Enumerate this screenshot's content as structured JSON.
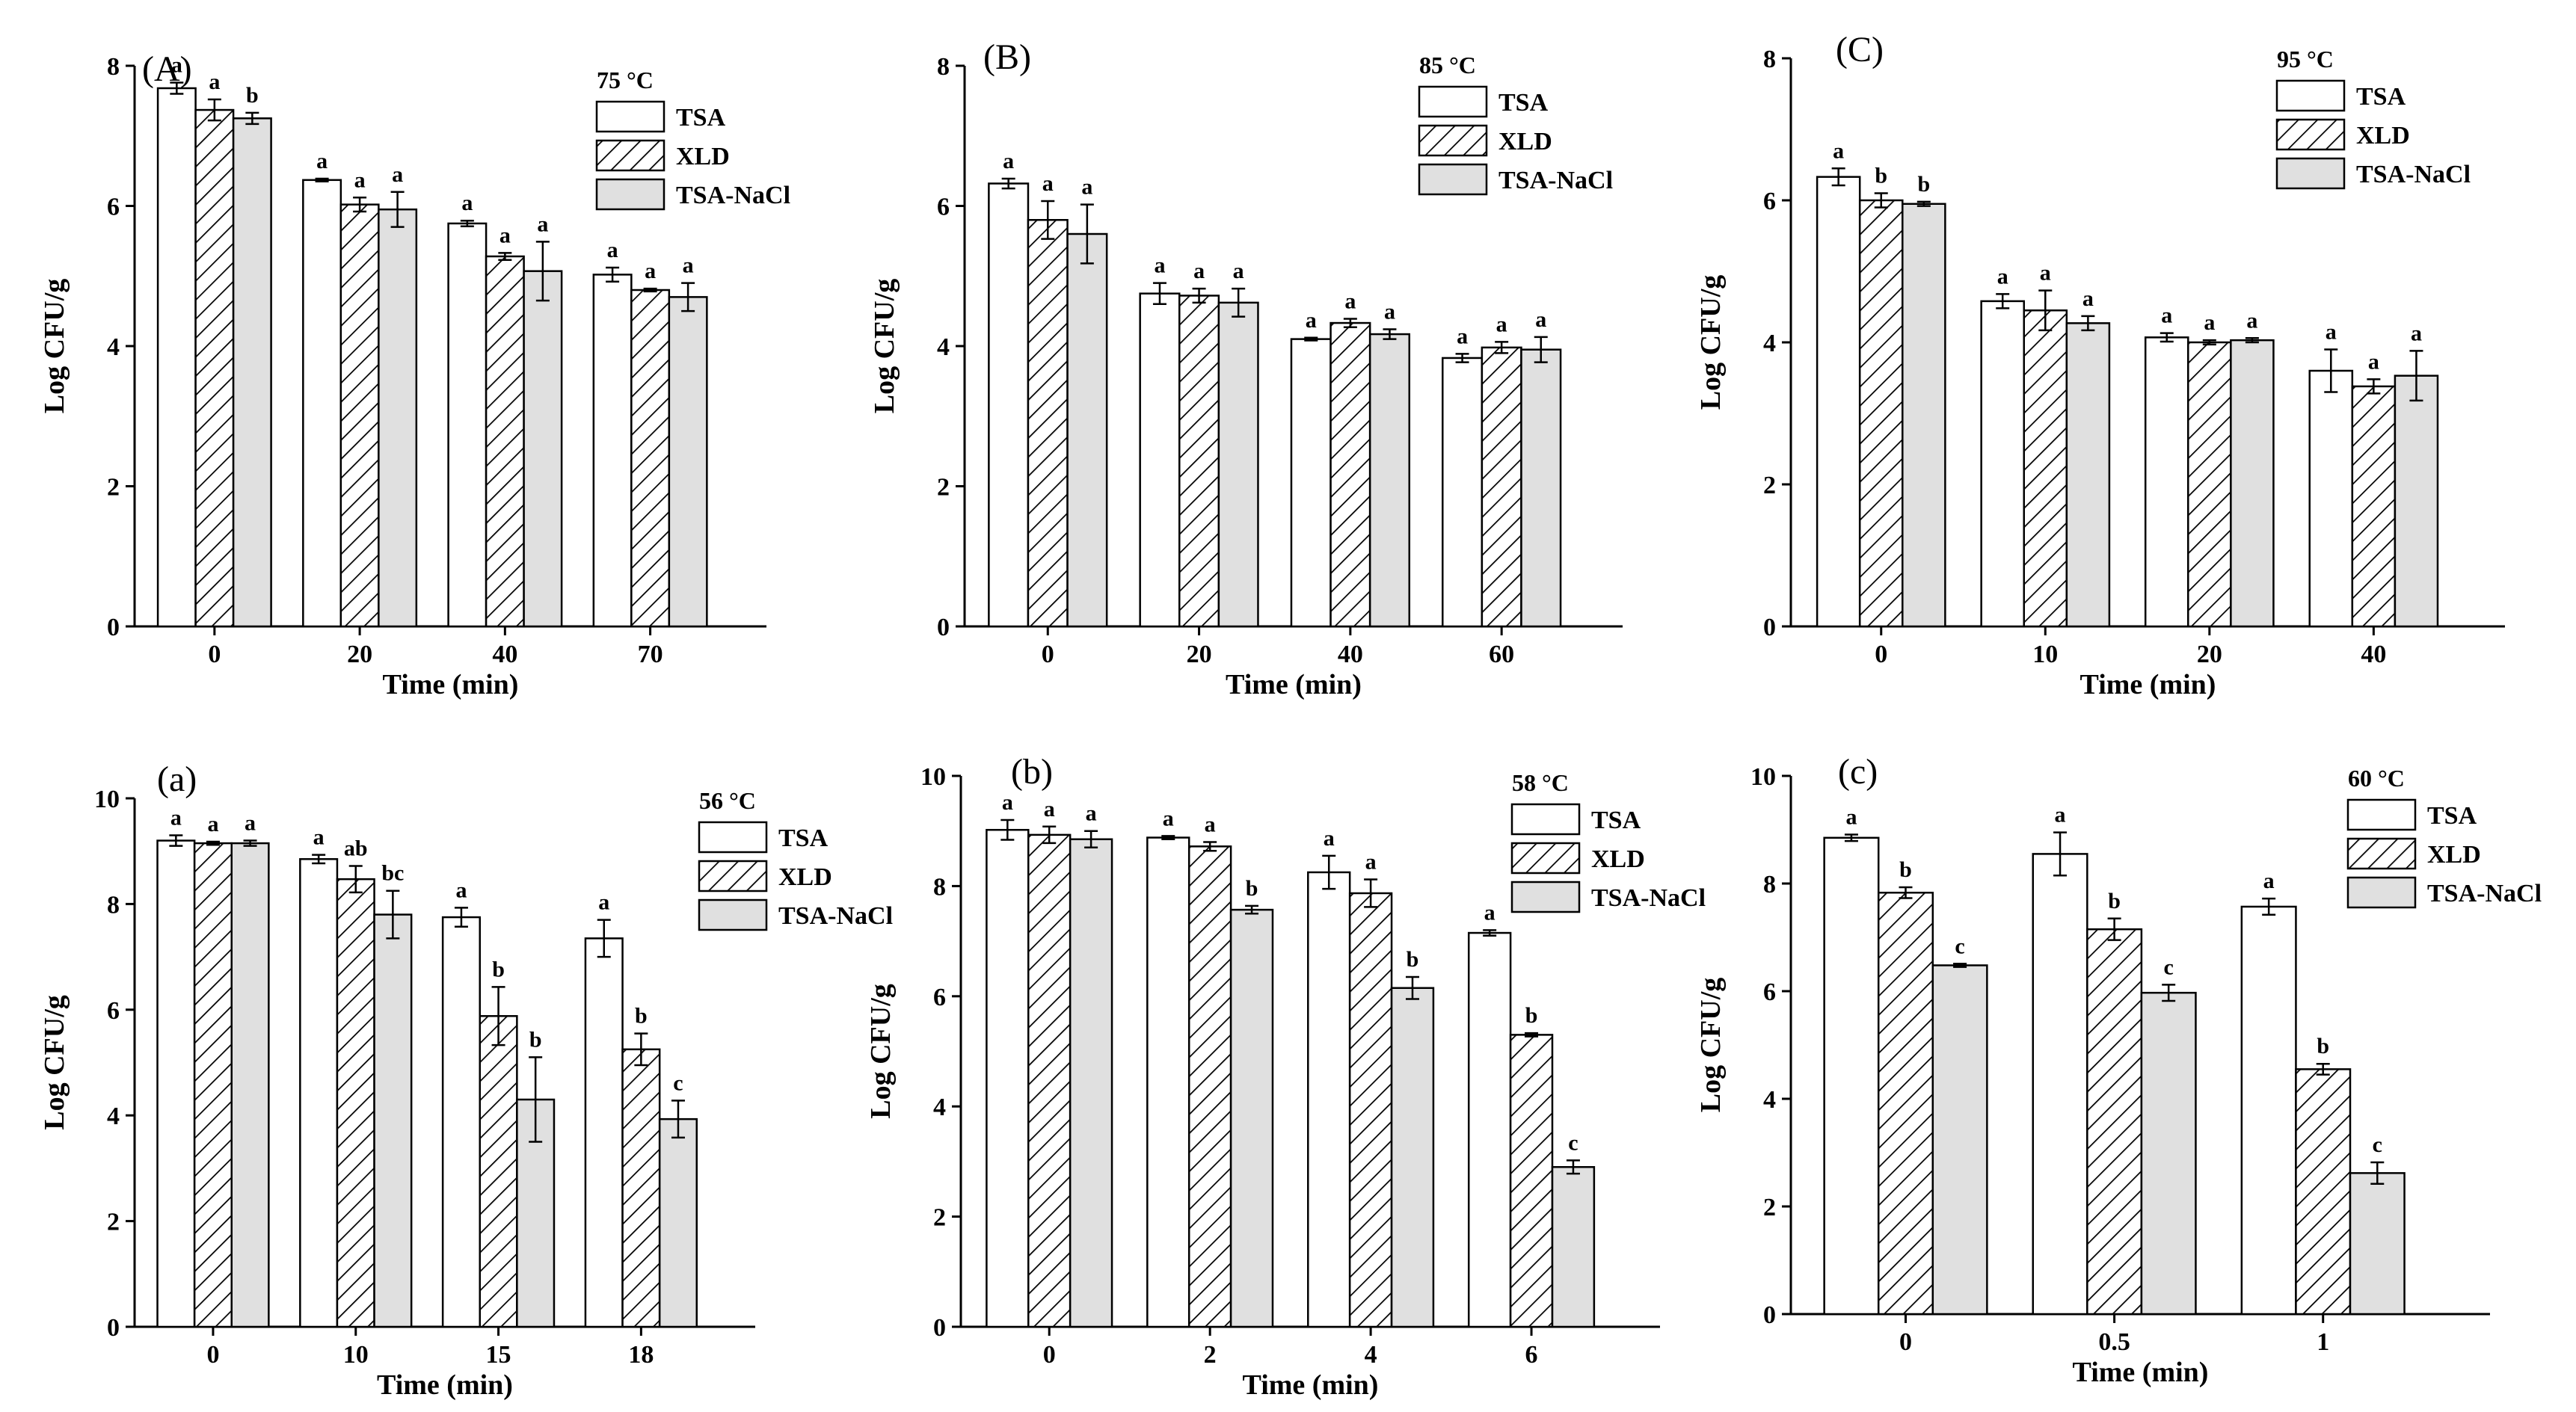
{
  "figure": {
    "colors": {
      "TSA": "#ffffff",
      "XLD": "#ffffff",
      "TSA-NaCl": "#e0e0e0",
      "stroke": "#000000",
      "hatch": "#000000"
    }
  },
  "chart_data": [
    {
      "panel": "(A)",
      "type": "bar",
      "legend_title": "75 °C",
      "xlabel": "Time (min)",
      "ylabel": "Log CFU/g",
      "ylim": [
        0,
        8
      ],
      "yticks": [
        "0",
        "2",
        "4",
        "6",
        "8"
      ],
      "categories": [
        "0",
        "20",
        "40",
        "70"
      ],
      "series": [
        {
          "name": "TSA",
          "values": [
            7.68,
            6.37,
            5.75,
            5.02
          ],
          "errors": [
            0.08,
            0.02,
            0.04,
            0.1
          ],
          "letters": [
            "a",
            "a",
            "a",
            "a"
          ]
        },
        {
          "name": "XLD",
          "values": [
            7.37,
            6.02,
            5.28,
            4.8
          ],
          "errors": [
            0.15,
            0.1,
            0.05,
            0.02
          ],
          "letters": [
            "a",
            "a",
            "a",
            "a"
          ]
        },
        {
          "name": "TSA-NaCl",
          "values": [
            7.25,
            5.95,
            5.07,
            4.7
          ],
          "errors": [
            0.08,
            0.25,
            0.42,
            0.2
          ],
          "letters": [
            "b",
            "a",
            "a",
            "a"
          ]
        }
      ]
    },
    {
      "panel": "(B)",
      "type": "bar",
      "legend_title": "85 °C",
      "xlabel": "Time (min)",
      "ylabel": "Log CFU/g",
      "ylim": [
        0,
        8
      ],
      "yticks": [
        "0",
        "2",
        "4",
        "6",
        "8"
      ],
      "categories": [
        "0",
        "20",
        "40",
        "60"
      ],
      "series": [
        {
          "name": "TSA",
          "values": [
            6.32,
            4.75,
            4.1,
            3.83
          ],
          "errors": [
            0.07,
            0.15,
            0.02,
            0.06
          ],
          "letters": [
            "a",
            "a",
            "a",
            "a"
          ]
        },
        {
          "name": "XLD",
          "values": [
            5.8,
            4.72,
            4.33,
            3.98
          ],
          "errors": [
            0.27,
            0.1,
            0.06,
            0.08
          ],
          "letters": [
            "a",
            "a",
            "a",
            "a"
          ]
        },
        {
          "name": "TSA-NaCl",
          "values": [
            5.6,
            4.62,
            4.17,
            3.95
          ],
          "errors": [
            0.42,
            0.2,
            0.07,
            0.18
          ],
          "letters": [
            "a",
            "a",
            "a",
            "a"
          ]
        }
      ]
    },
    {
      "panel": "(C)",
      "type": "bar",
      "legend_title": "95 °C",
      "xlabel": "Time (min)",
      "ylabel": "Log CFU/g",
      "ylim": [
        0,
        8
      ],
      "yticks": [
        "0",
        "2",
        "4",
        "6",
        "8"
      ],
      "categories": [
        "0",
        "10",
        "20",
        "40"
      ],
      "series": [
        {
          "name": "TSA",
          "values": [
            6.33,
            4.58,
            4.07,
            3.6
          ],
          "errors": [
            0.12,
            0.1,
            0.06,
            0.3
          ],
          "letters": [
            "a",
            "a",
            "a",
            "a"
          ]
        },
        {
          "name": "XLD",
          "values": [
            6.0,
            4.45,
            4.0,
            3.38
          ],
          "errors": [
            0.1,
            0.28,
            0.03,
            0.1
          ],
          "letters": [
            "b",
            "a",
            "a",
            "a"
          ]
        },
        {
          "name": "TSA-NaCl",
          "values": [
            5.95,
            4.27,
            4.03,
            3.53
          ],
          "errors": [
            0.03,
            0.1,
            0.03,
            0.35
          ],
          "letters": [
            "b",
            "a",
            "a",
            "a"
          ]
        }
      ]
    },
    {
      "panel": "(a)",
      "type": "bar",
      "legend_title": "56 °C",
      "xlabel": "Time (min)",
      "ylabel": "Log CFU/g",
      "ylim": [
        0,
        10
      ],
      "yticks": [
        "0",
        "2",
        "4",
        "6",
        "8",
        "10"
      ],
      "categories": [
        "0",
        "10",
        "15",
        "18"
      ],
      "series": [
        {
          "name": "TSA",
          "values": [
            9.2,
            8.85,
            7.75,
            7.35
          ],
          "errors": [
            0.1,
            0.08,
            0.18,
            0.35
          ],
          "letters": [
            "a",
            "a",
            "a",
            "a"
          ]
        },
        {
          "name": "XLD",
          "values": [
            9.15,
            8.47,
            5.88,
            5.25
          ],
          "errors": [
            0.03,
            0.25,
            0.55,
            0.3
          ],
          "letters": [
            "a",
            "ab",
            "b",
            "b"
          ]
        },
        {
          "name": "TSA-NaCl",
          "values": [
            9.15,
            7.8,
            4.3,
            3.93
          ],
          "errors": [
            0.05,
            0.45,
            0.8,
            0.35
          ],
          "letters": [
            "a",
            "bc",
            "b",
            "c"
          ]
        }
      ]
    },
    {
      "panel": "(b)",
      "type": "bar",
      "legend_title": "58 °C",
      "xlabel": "Time (min)",
      "ylabel": "Log CFU/g",
      "ylim": [
        0,
        10
      ],
      "yticks": [
        "0",
        "2",
        "4",
        "6",
        "8",
        "10"
      ],
      "categories": [
        "0",
        "2",
        "4",
        "6"
      ],
      "series": [
        {
          "name": "TSA",
          "values": [
            9.02,
            8.88,
            8.25,
            7.15
          ],
          "errors": [
            0.18,
            0.03,
            0.3,
            0.05
          ],
          "letters": [
            "a",
            "a",
            "a",
            "a"
          ]
        },
        {
          "name": "XLD",
          "values": [
            8.93,
            8.72,
            7.87,
            5.3
          ],
          "errors": [
            0.15,
            0.08,
            0.25,
            0.03
          ],
          "letters": [
            "a",
            "a",
            "a",
            "b"
          ]
        },
        {
          "name": "TSA-NaCl",
          "values": [
            8.85,
            7.57,
            6.15,
            2.9
          ],
          "errors": [
            0.15,
            0.07,
            0.2,
            0.12
          ],
          "letters": [
            "a",
            "b",
            "b",
            "c"
          ]
        }
      ]
    },
    {
      "panel": "(c)",
      "type": "bar",
      "legend_title": "60 °C",
      "xlabel": "Time (min)",
      "ylabel": "Log CFU/g",
      "ylim": [
        0,
        10
      ],
      "yticks": [
        "0",
        "2",
        "4",
        "6",
        "8",
        "10"
      ],
      "categories": [
        "0",
        "0.5",
        "1"
      ],
      "series": [
        {
          "name": "TSA",
          "values": [
            8.85,
            8.55,
            7.57
          ],
          "errors": [
            0.06,
            0.4,
            0.15
          ],
          "letters": [
            "a",
            "a",
            "a"
          ]
        },
        {
          "name": "XLD",
          "values": [
            7.83,
            7.15,
            4.55
          ],
          "errors": [
            0.1,
            0.2,
            0.1
          ],
          "letters": [
            "b",
            "b",
            "b"
          ]
        },
        {
          "name": "TSA-NaCl",
          "values": [
            6.48,
            5.97,
            2.62
          ],
          "errors": [
            0.03,
            0.15,
            0.2
          ],
          "letters": [
            "c",
            "c",
            "c"
          ]
        }
      ]
    }
  ]
}
